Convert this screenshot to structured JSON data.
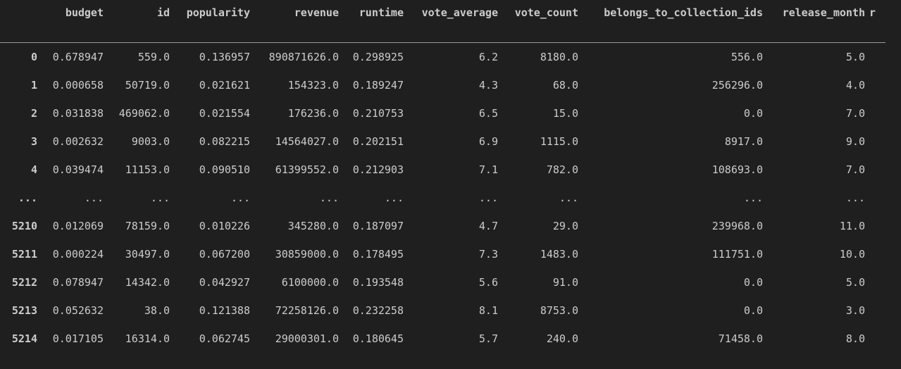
{
  "table": {
    "columns": [
      "budget",
      "id",
      "popularity",
      "revenue",
      "runtime",
      "vote_average",
      "vote_count",
      "belongs_to_collection_ids",
      "release_month",
      "r"
    ],
    "rows": [
      {
        "index": "0",
        "cells": [
          "0.678947",
          "559.0",
          "0.136957",
          "890871626.0",
          "0.298925",
          "6.2",
          "8180.0",
          "556.0",
          "5.0",
          ""
        ]
      },
      {
        "index": "1",
        "cells": [
          "0.000658",
          "50719.0",
          "0.021621",
          "154323.0",
          "0.189247",
          "4.3",
          "68.0",
          "256296.0",
          "4.0",
          ""
        ]
      },
      {
        "index": "2",
        "cells": [
          "0.031838",
          "469062.0",
          "0.021554",
          "176236.0",
          "0.210753",
          "6.5",
          "15.0",
          "0.0",
          "7.0",
          ""
        ]
      },
      {
        "index": "3",
        "cells": [
          "0.002632",
          "9003.0",
          "0.082215",
          "14564027.0",
          "0.202151",
          "6.9",
          "1115.0",
          "8917.0",
          "9.0",
          ""
        ]
      },
      {
        "index": "4",
        "cells": [
          "0.039474",
          "11153.0",
          "0.090510",
          "61399552.0",
          "0.212903",
          "7.1",
          "782.0",
          "108693.0",
          "7.0",
          ""
        ]
      },
      {
        "index": "...",
        "cells": [
          "...",
          "...",
          "...",
          "...",
          "...",
          "...",
          "...",
          "...",
          "...",
          ""
        ]
      },
      {
        "index": "5210",
        "cells": [
          "0.012069",
          "78159.0",
          "0.010226",
          "345280.0",
          "0.187097",
          "4.7",
          "29.0",
          "239968.0",
          "11.0",
          ""
        ]
      },
      {
        "index": "5211",
        "cells": [
          "0.000224",
          "30497.0",
          "0.067200",
          "30859000.0",
          "0.178495",
          "7.3",
          "1483.0",
          "111751.0",
          "10.0",
          ""
        ]
      },
      {
        "index": "5212",
        "cells": [
          "0.078947",
          "14342.0",
          "0.042927",
          "6100000.0",
          "0.193548",
          "5.6",
          "91.0",
          "0.0",
          "5.0",
          ""
        ]
      },
      {
        "index": "5213",
        "cells": [
          "0.052632",
          "38.0",
          "0.121388",
          "72258126.0",
          "0.232258",
          "8.1",
          "8753.0",
          "0.0",
          "3.0",
          ""
        ]
      },
      {
        "index": "5214",
        "cells": [
          "0.017105",
          "16314.0",
          "0.062745",
          "29000301.0",
          "0.180645",
          "5.7",
          "240.0",
          "71458.0",
          "8.0",
          ""
        ]
      }
    ]
  }
}
